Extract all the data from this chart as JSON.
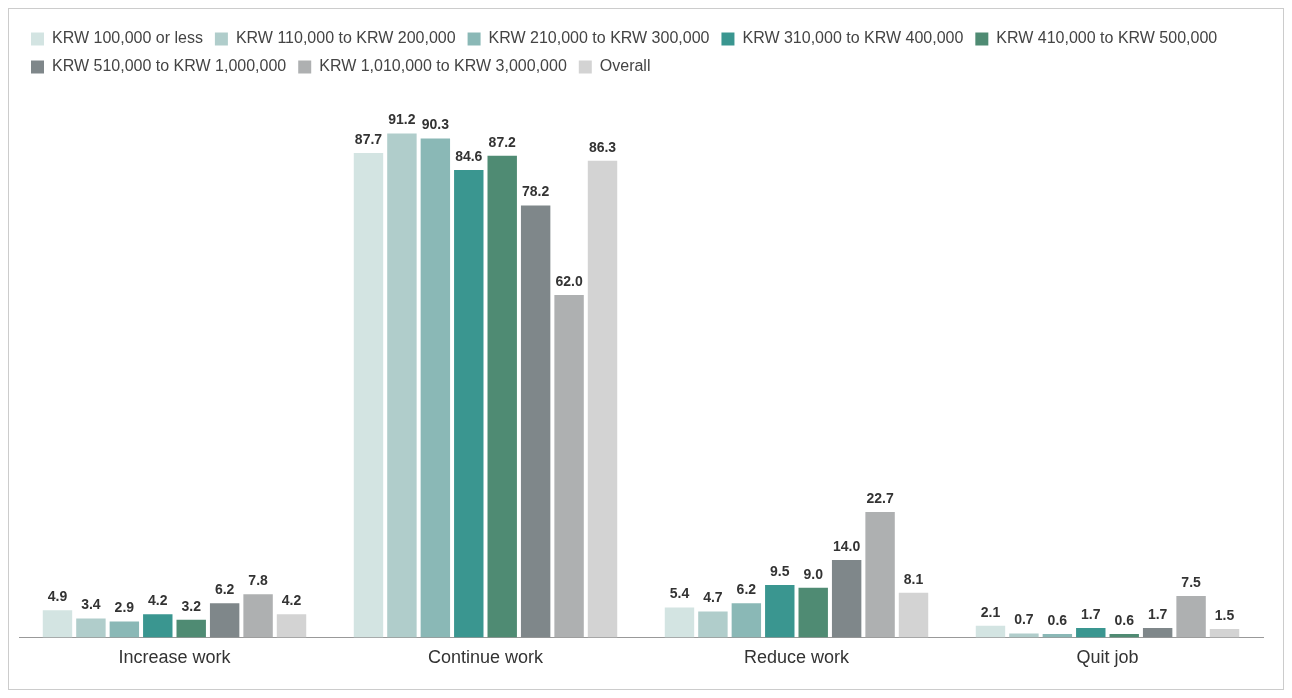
{
  "chart_data": {
    "type": "bar",
    "categories": [
      "Increase work",
      "Continue work",
      "Reduce work",
      "Quit job"
    ],
    "series": [
      {
        "name": "KRW 100,000 or less",
        "color": "#d3e4e2",
        "values": [
          4.9,
          87.7,
          5.4,
          2.1
        ],
        "value_labels": [
          "4.9",
          "87.7",
          "5.4",
          "2.1"
        ]
      },
      {
        "name": "KRW 110,000 to KRW 200,000",
        "color": "#b0cdcb",
        "values": [
          3.4,
          91.2,
          4.7,
          0.7
        ],
        "value_labels": [
          "3.4",
          "91.2",
          "4.7",
          "0.7"
        ]
      },
      {
        "name": "KRW 210,000 to KRW 300,000",
        "color": "#8ab8b6",
        "values": [
          2.9,
          90.3,
          6.2,
          0.6
        ],
        "value_labels": [
          "2.9",
          "90.3",
          "6.2",
          "0.6"
        ]
      },
      {
        "name": "KRW 310,000 to KRW 400,000",
        "color": "#3a9690",
        "values": [
          4.2,
          84.6,
          9.5,
          1.7
        ],
        "value_labels": [
          "4.2",
          "84.6",
          "9.5",
          "1.7"
        ]
      },
      {
        "name": "KRW 410,000 to KRW 500,000",
        "color": "#4f8b73",
        "values": [
          3.2,
          87.2,
          9.0,
          0.6
        ],
        "value_labels": [
          "3.2",
          "87.2",
          "9.0",
          "0.6"
        ]
      },
      {
        "name": "KRW 510,000 to KRW 1,000,000",
        "color": "#7f878a",
        "values": [
          6.2,
          78.2,
          14.0,
          1.7
        ],
        "value_labels": [
          "6.2",
          "78.2",
          "14.0",
          "1.7"
        ]
      },
      {
        "name": "KRW 1,010,000 to KRW 3,000,000",
        "color": "#aeb0b1",
        "values": [
          7.8,
          62.0,
          22.7,
          7.5
        ],
        "value_labels": [
          "7.8",
          "62.0",
          "22.7",
          "7.5"
        ]
      },
      {
        "name": "Overall",
        "color": "#d3d3d3",
        "values": [
          4.2,
          86.3,
          8.1,
          1.5
        ],
        "value_labels": [
          "4.2",
          "86.3",
          "8.1",
          "1.5"
        ]
      }
    ],
    "grid": false,
    "legend": "top left"
  }
}
